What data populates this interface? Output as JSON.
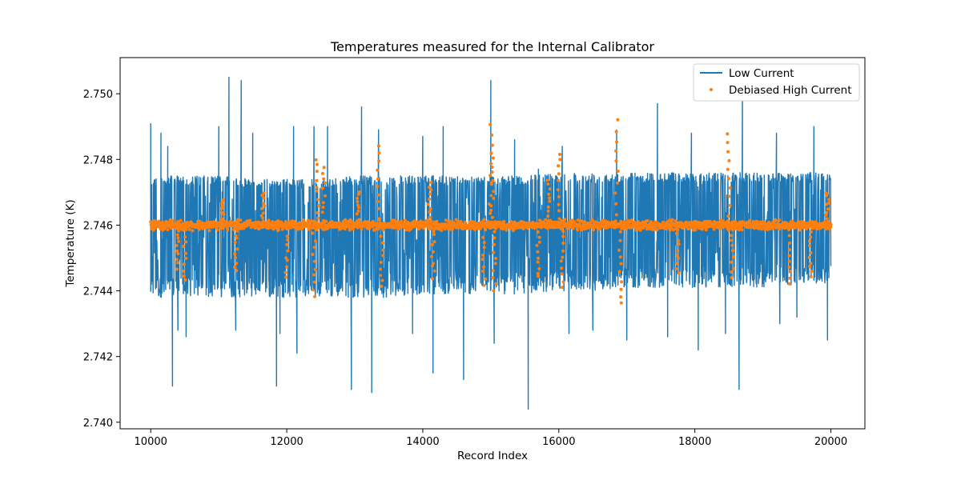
{
  "chart_data": {
    "type": "line",
    "title": "Temperatures measured for the Internal Calibrator",
    "xlabel": "Record Index",
    "ylabel": "Temperature (K)",
    "xlim": [
      9550,
      20500
    ],
    "ylim": [
      2.7398,
      2.7511
    ],
    "xticks": [
      10000,
      12000,
      14000,
      16000,
      18000,
      20000
    ],
    "yticks": [
      2.74,
      2.742,
      2.744,
      2.746,
      2.748,
      2.75
    ],
    "ytick_labels": [
      "2.740",
      "2.742",
      "2.744",
      "2.746",
      "2.748",
      "2.750"
    ],
    "grid": false,
    "legend_position": "upper right",
    "series": [
      {
        "name": "Low Current",
        "kind": "line",
        "color": "#1f77b4",
        "envelope": {
          "x": [
            10000,
            10500,
            11000,
            11500,
            12000,
            12500,
            13000,
            13500,
            14000,
            14500,
            15000,
            15500,
            16000,
            16500,
            17000,
            17500,
            18000,
            18500,
            19000,
            19500,
            20000
          ],
          "upper": [
            2.7475,
            2.7475,
            2.7475,
            2.7474,
            2.7474,
            2.7474,
            2.7475,
            2.7475,
            2.7475,
            2.7475,
            2.7475,
            2.7475,
            2.7476,
            2.7476,
            2.7476,
            2.7476,
            2.7476,
            2.7476,
            2.7476,
            2.7476,
            2.7476
          ],
          "lower": [
            2.7438,
            2.7438,
            2.7438,
            2.7438,
            2.7438,
            2.7438,
            2.7438,
            2.7438,
            2.7439,
            2.7439,
            2.7439,
            2.7439,
            2.744,
            2.744,
            2.7441,
            2.7441,
            2.7441,
            2.7441,
            2.7441,
            2.7442,
            2.7442
          ]
        },
        "spikes": [
          {
            "x": 10000,
            "y": 2.7491
          },
          {
            "x": 10150,
            "y": 2.7488
          },
          {
            "x": 10250,
            "y": 2.7484
          },
          {
            "x": 10320,
            "y": 2.7411
          },
          {
            "x": 10400,
            "y": 2.7428
          },
          {
            "x": 10520,
            "y": 2.7426
          },
          {
            "x": 11000,
            "y": 2.749
          },
          {
            "x": 11150,
            "y": 2.7505
          },
          {
            "x": 11250,
            "y": 2.7428
          },
          {
            "x": 11330,
            "y": 2.7504
          },
          {
            "x": 11500,
            "y": 2.7488
          },
          {
            "x": 11850,
            "y": 2.7411
          },
          {
            "x": 11900,
            "y": 2.7427
          },
          {
            "x": 12100,
            "y": 2.749
          },
          {
            "x": 12150,
            "y": 2.7421
          },
          {
            "x": 12400,
            "y": 2.749
          },
          {
            "x": 12600,
            "y": 2.749
          },
          {
            "x": 12950,
            "y": 2.741
          },
          {
            "x": 13100,
            "y": 2.7496
          },
          {
            "x": 13250,
            "y": 2.7409
          },
          {
            "x": 13350,
            "y": 2.7489
          },
          {
            "x": 13850,
            "y": 2.7427
          },
          {
            "x": 14000,
            "y": 2.7487
          },
          {
            "x": 14150,
            "y": 2.7415
          },
          {
            "x": 14300,
            "y": 2.749
          },
          {
            "x": 14600,
            "y": 2.7413
          },
          {
            "x": 15000,
            "y": 2.7504
          },
          {
            "x": 15050,
            "y": 2.7424
          },
          {
            "x": 15350,
            "y": 2.7486
          },
          {
            "x": 15550,
            "y": 2.7404
          },
          {
            "x": 15700,
            "y": 2.7477
          },
          {
            "x": 16050,
            "y": 2.7484
          },
          {
            "x": 16150,
            "y": 2.7427
          },
          {
            "x": 16500,
            "y": 2.7428
          },
          {
            "x": 16850,
            "y": 2.7489
          },
          {
            "x": 17000,
            "y": 2.7425
          },
          {
            "x": 17450,
            "y": 2.7497
          },
          {
            "x": 17600,
            "y": 2.7426
          },
          {
            "x": 17950,
            "y": 2.7488
          },
          {
            "x": 18050,
            "y": 2.7422
          },
          {
            "x": 18450,
            "y": 2.7427
          },
          {
            "x": 18650,
            "y": 2.741
          },
          {
            "x": 18700,
            "y": 2.7501
          },
          {
            "x": 19200,
            "y": 2.7488
          },
          {
            "x": 19250,
            "y": 2.743
          },
          {
            "x": 19500,
            "y": 2.7432
          },
          {
            "x": 19750,
            "y": 2.749
          },
          {
            "x": 19950,
            "y": 2.7425
          }
        ]
      },
      {
        "name": "Debiased High Current",
        "kind": "scatter",
        "color": "#ff7f0e",
        "center": 2.746,
        "band_halfwidth": 0.0002,
        "outliers": [
          {
            "x": 10400,
            "y": 2.7447
          },
          {
            "x": 10500,
            "y": 2.7443
          },
          {
            "x": 11050,
            "y": 2.7468
          },
          {
            "x": 11250,
            "y": 2.7446
          },
          {
            "x": 11650,
            "y": 2.747
          },
          {
            "x": 12000,
            "y": 2.7444
          },
          {
            "x": 12400,
            "y": 2.7438
          },
          {
            "x": 12450,
            "y": 2.748
          },
          {
            "x": 12550,
            "y": 2.7478
          },
          {
            "x": 13050,
            "y": 2.747
          },
          {
            "x": 13350,
            "y": 2.7484
          },
          {
            "x": 13400,
            "y": 2.7441
          },
          {
            "x": 14100,
            "y": 2.7473
          },
          {
            "x": 14150,
            "y": 2.7444
          },
          {
            "x": 14900,
            "y": 2.7442
          },
          {
            "x": 15000,
            "y": 2.7491
          },
          {
            "x": 15020,
            "y": 2.748
          },
          {
            "x": 15050,
            "y": 2.744
          },
          {
            "x": 15700,
            "y": 2.7444
          },
          {
            "x": 15850,
            "y": 2.7474
          },
          {
            "x": 16000,
            "y": 2.7482
          },
          {
            "x": 16050,
            "y": 2.7441
          },
          {
            "x": 16850,
            "y": 2.7492
          },
          {
            "x": 16900,
            "y": 2.7436
          },
          {
            "x": 17750,
            "y": 2.7445
          },
          {
            "x": 18500,
            "y": 2.7488
          },
          {
            "x": 18550,
            "y": 2.7444
          },
          {
            "x": 19400,
            "y": 2.7442
          },
          {
            "x": 19700,
            "y": 2.7444
          },
          {
            "x": 19950,
            "y": 2.747
          }
        ]
      }
    ]
  }
}
